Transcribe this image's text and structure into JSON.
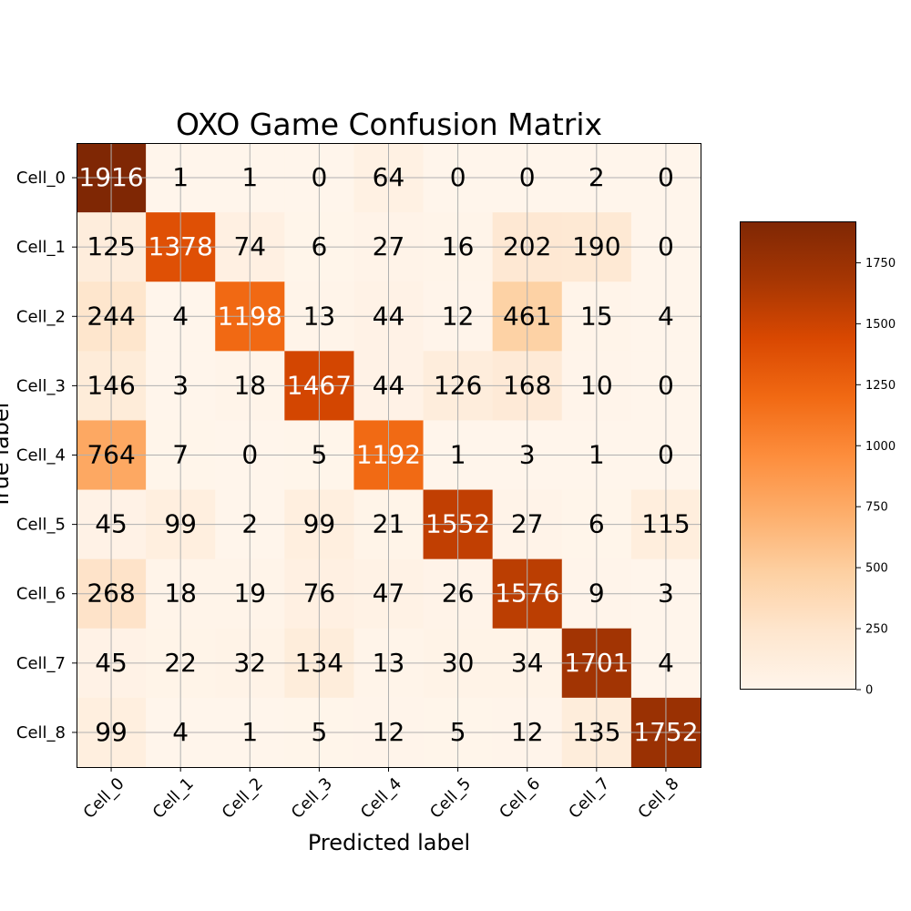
{
  "chart_data": {
    "type": "heatmap",
    "title": "OXO Game Confusion Matrix",
    "xlabel": "Predicted label",
    "ylabel": "True label",
    "x_categories": [
      "Cell_0",
      "Cell_1",
      "Cell_2",
      "Cell_3",
      "Cell_4",
      "Cell_5",
      "Cell_6",
      "Cell_7",
      "Cell_8"
    ],
    "y_categories": [
      "Cell_0",
      "Cell_1",
      "Cell_2",
      "Cell_3",
      "Cell_4",
      "Cell_5",
      "Cell_6",
      "Cell_7",
      "Cell_8"
    ],
    "values": [
      [
        1916,
        1,
        1,
        0,
        64,
        0,
        0,
        2,
        0
      ],
      [
        125,
        1378,
        74,
        6,
        27,
        16,
        202,
        190,
        0
      ],
      [
        244,
        4,
        1198,
        13,
        44,
        12,
        461,
        15,
        4
      ],
      [
        146,
        3,
        18,
        1467,
        44,
        126,
        168,
        10,
        0
      ],
      [
        764,
        7,
        0,
        5,
        1192,
        1,
        3,
        1,
        0
      ],
      [
        45,
        99,
        2,
        99,
        21,
        1552,
        27,
        6,
        115
      ],
      [
        268,
        18,
        19,
        76,
        47,
        26,
        1576,
        9,
        3
      ],
      [
        45,
        22,
        32,
        134,
        13,
        30,
        34,
        1701,
        4
      ],
      [
        99,
        4,
        1,
        5,
        12,
        5,
        12,
        135,
        1752
      ]
    ],
    "colormap": "Oranges",
    "colorbar": {
      "min": 0,
      "max": 1916,
      "ticks": [
        0,
        250,
        500,
        750,
        1000,
        1250,
        1500,
        1750
      ]
    },
    "grid": true,
    "legend": "colorbar-right"
  }
}
